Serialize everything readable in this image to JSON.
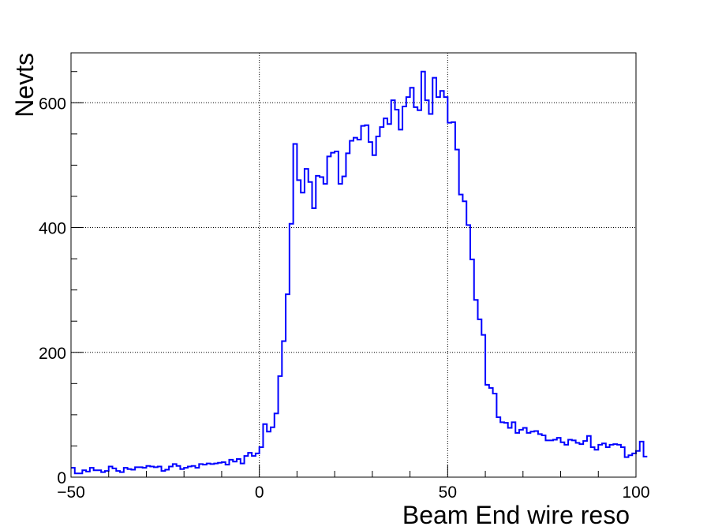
{
  "chart_data": {
    "type": "histogram",
    "xlabel": "Beam End wire reso",
    "ylabel": "Nevts",
    "xlim": [
      -50,
      100
    ],
    "ylim": [
      0,
      680
    ],
    "x_ticks": [
      -50,
      0,
      50,
      100
    ],
    "x_tick_labels": [
      "−50",
      "0",
      "50",
      "100"
    ],
    "y_ticks": [
      0,
      200,
      400,
      600
    ],
    "y_tick_labels": [
      "0",
      "200",
      "400",
      "600"
    ],
    "grid": true,
    "line_color": "#0000ff",
    "bin_width": 1,
    "bin_start": -50,
    "values": [
      15,
      6,
      6,
      11,
      9,
      15,
      11,
      11,
      8,
      10,
      17,
      14,
      10,
      8,
      15,
      13,
      12,
      16,
      16,
      15,
      18,
      17,
      16,
      17,
      10,
      12,
      17,
      21,
      18,
      13,
      15,
      17,
      18,
      15,
      21,
      20,
      22,
      21,
      22,
      23,
      24,
      20,
      28,
      25,
      29,
      22,
      34,
      39,
      34,
      38,
      48,
      85,
      73,
      80,
      102,
      162,
      218,
      293,
      406,
      534,
      476,
      456,
      494,
      473,
      431,
      483,
      481,
      470,
      514,
      520,
      522,
      470,
      482,
      519,
      539,
      544,
      541,
      563,
      564,
      537,
      516,
      546,
      561,
      575,
      566,
      604,
      589,
      557,
      594,
      609,
      624,
      593,
      588,
      650,
      604,
      582,
      640,
      609,
      619,
      609,
      568,
      569,
      525,
      453,
      442,
      404,
      349,
      284,
      253,
      228,
      148,
      143,
      134,
      96,
      88,
      87,
      79,
      88,
      71,
      76,
      79,
      71,
      73,
      74,
      69,
      67,
      59,
      59,
      60,
      63,
      56,
      52,
      60,
      59,
      55,
      53,
      58,
      66,
      48,
      44,
      52,
      54,
      48,
      52,
      53,
      52,
      48,
      32,
      35,
      38,
      42,
      57,
      33
    ]
  }
}
